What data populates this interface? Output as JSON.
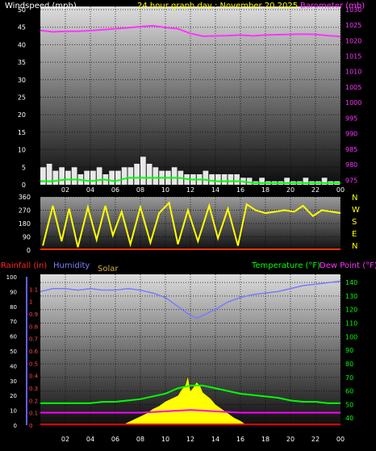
{
  "colors": {
    "background": "#000000",
    "wind": "#ffffff",
    "gust": "#00ff00",
    "barometer": "#ff33ff",
    "direction": "#ffff00",
    "rain": "#ff0000",
    "humidity": "#7a7aff",
    "solar": "#ffff00",
    "temperature": "#00ff00",
    "dewpoint": "#ff00ff",
    "title": "#ffff00",
    "windLabel": "#ffffff"
  },
  "chart_data": [
    {
      "type": "line",
      "title": "24 hour graph day : November 20 2025",
      "left_label": "Windspeed (mph)",
      "right_label": "Barometer (mb)",
      "x_ticks": [
        "02",
        "04",
        "06",
        "08",
        "10",
        "12",
        "14",
        "16",
        "18",
        "20",
        "22",
        "00"
      ],
      "x_range": [
        0,
        24
      ],
      "y_left_ticks": [
        0,
        5,
        10,
        15,
        20,
        25,
        30,
        35,
        40,
        45,
        50
      ],
      "ylim_left": [
        0,
        50
      ],
      "y_right_ticks": [
        975,
        980,
        985,
        990,
        995,
        1000,
        1005,
        1010,
        1015,
        1020,
        1025,
        1030
      ],
      "ylim_right": [
        973,
        1031
      ],
      "series": [
        {
          "role": "windspeed",
          "axis": "left",
          "style": "bars",
          "x": [
            0,
            0.5,
            1,
            1.5,
            2,
            2.5,
            3,
            3.5,
            4,
            4.5,
            5,
            5.5,
            6,
            6.5,
            7,
            7.5,
            8,
            8.5,
            9,
            9.5,
            10,
            10.5,
            11,
            11.5,
            12,
            12.5,
            13,
            13.5,
            14,
            14.5,
            15,
            15.5,
            16,
            16.5,
            17,
            17.5,
            18,
            18.5,
            19,
            19.5,
            20,
            20.5,
            21,
            21.5,
            22,
            22.5,
            23,
            23.5,
            24
          ],
          "y": [
            5,
            6,
            4,
            5,
            4,
            5,
            3,
            4,
            4,
            5,
            3,
            4,
            4,
            5,
            5,
            6,
            8,
            6,
            5,
            4,
            4,
            5,
            4,
            3,
            3,
            3,
            4,
            3,
            3,
            3,
            3,
            3,
            2,
            2,
            1,
            2,
            1,
            1,
            1,
            2,
            1,
            1,
            2,
            1,
            1,
            2,
            1,
            1,
            1
          ]
        },
        {
          "role": "gust",
          "axis": "left",
          "x": [
            0,
            1,
            2,
            3,
            4,
            5,
            6,
            7,
            8,
            9,
            10,
            11,
            12,
            13,
            14,
            15,
            16,
            17,
            18,
            19,
            20,
            21,
            22,
            23,
            24
          ],
          "y": [
            1,
            1,
            1.5,
            1.5,
            1,
            1.5,
            1,
            2,
            2,
            2,
            2,
            2,
            1.5,
            1.5,
            1,
            1,
            1,
            0.5,
            0.5,
            0.5,
            0.5,
            0.5,
            0.5,
            0.5,
            0.5
          ]
        },
        {
          "role": "barometer",
          "axis": "right",
          "x": [
            0,
            1,
            2,
            3,
            4,
            5,
            6,
            7,
            8,
            9,
            10,
            11,
            12,
            13,
            14,
            15,
            16,
            17,
            18,
            19,
            20,
            21,
            22,
            23,
            24
          ],
          "y": [
            1023.3,
            1022.8,
            1023.0,
            1023.0,
            1023.2,
            1023.5,
            1023.8,
            1024.1,
            1024.5,
            1024.8,
            1024.2,
            1023.8,
            1022.3,
            1021.4,
            1021.5,
            1021.6,
            1021.8,
            1021.5,
            1021.8,
            1021.9,
            1022.0,
            1022.1,
            1022.0,
            1021.6,
            1021.3
          ]
        }
      ]
    },
    {
      "type": "scatter",
      "right_labels": [
        "N",
        "W",
        "S",
        "E",
        "N"
      ],
      "x_range": [
        0,
        24
      ],
      "y_ticks": [
        0,
        90,
        180,
        270,
        360
      ],
      "ylim": [
        0,
        360
      ],
      "series": [
        {
          "role": "wind_direction",
          "x": [
            0.2,
            1,
            1.7,
            2.3,
            3,
            3.8,
            4.5,
            5.2,
            5.8,
            6.5,
            7.2,
            8,
            8.8,
            9.5,
            10.3,
            11,
            11.8,
            12.6,
            13.5,
            14.2,
            15,
            15.8,
            16.5,
            17.2,
            18,
            18.8,
            19.5,
            20.3,
            21,
            21.8,
            22.5,
            23.3,
            24
          ],
          "y": [
            30,
            300,
            60,
            280,
            20,
            290,
            70,
            300,
            100,
            260,
            40,
            290,
            50,
            250,
            320,
            40,
            270,
            60,
            300,
            80,
            280,
            30,
            310,
            270,
            250,
            260,
            270,
            260,
            300,
            230,
            270,
            260,
            250
          ]
        }
      ]
    },
    {
      "type": "line",
      "left_label": "Rainfall (in)",
      "humidity_label": "Humidity",
      "solar_label": "Solar",
      "right_label_temp": "Temperature (°F)",
      "right_label_dew": "Dew Point (°F)",
      "x_ticks": [
        "02",
        "04",
        "06",
        "08",
        "10",
        "12",
        "14",
        "16",
        "18",
        "20",
        "22",
        "00"
      ],
      "x_range": [
        0,
        24
      ],
      "humidity_ticks": [
        0,
        10,
        20,
        30,
        40,
        50,
        60,
        70,
        80,
        90,
        100
      ],
      "rain_ticks": [
        "0",
        "0.1",
        "0.2",
        "0.3",
        "0.4",
        "0.5",
        "0.6",
        "0.7",
        "0.8",
        "0.9",
        "1",
        "1.1"
      ],
      "ylim_rain": [
        0,
        1.2
      ],
      "temp_ticks": [
        40,
        50,
        60,
        70,
        80,
        90,
        100,
        110,
        120,
        130,
        140
      ],
      "ylim_temp": [
        33,
        146
      ],
      "series": [
        {
          "role": "humidity",
          "axis": "humidity",
          "x": [
            0,
            1,
            2,
            3,
            4,
            5,
            6,
            7,
            8,
            9,
            10,
            11,
            11.8,
            12.5,
            13,
            14,
            15,
            16,
            17,
            18,
            19,
            20,
            21,
            22,
            23,
            24
          ],
          "y": [
            90,
            92,
            92,
            91,
            92,
            91,
            91,
            92,
            91,
            89,
            86,
            80,
            75,
            72,
            74,
            78,
            83,
            86,
            88,
            89,
            90,
            92,
            94,
            95,
            96,
            97
          ]
        },
        {
          "role": "temperature",
          "axis": "temp",
          "x": [
            0,
            1,
            2,
            3,
            4,
            5,
            6,
            7,
            8,
            9,
            10,
            11,
            12,
            13,
            14,
            15,
            16,
            17,
            18,
            19,
            20,
            21,
            22,
            23,
            24
          ],
          "y": [
            51,
            51,
            51,
            51,
            51,
            52,
            52,
            53,
            54,
            56,
            58,
            62,
            64,
            64,
            62,
            60,
            58,
            57,
            56,
            55,
            53,
            52,
            52,
            51,
            51
          ]
        },
        {
          "role": "dew_point",
          "axis": "temp",
          "x": [
            0,
            2,
            4,
            6,
            8,
            10,
            12,
            14,
            16,
            18,
            20,
            22,
            24
          ],
          "y": [
            44,
            44,
            44,
            44,
            44,
            45,
            46,
            45,
            44,
            44,
            44,
            44,
            44
          ]
        },
        {
          "role": "solar",
          "axis": "humidity",
          "x": [
            6.5,
            7,
            7.5,
            8,
            8.5,
            9,
            9.5,
            10,
            10.5,
            11,
            11.3,
            11.6,
            11.8,
            12,
            12.2,
            12.5,
            12.8,
            13,
            13.3,
            13.6,
            14,
            14.5,
            15,
            15.5,
            16,
            16.5
          ],
          "y": [
            0,
            2,
            4,
            6,
            8,
            11,
            13,
            16,
            18,
            20,
            24,
            27,
            33,
            23,
            25,
            29,
            26,
            22,
            20,
            18,
            14,
            11,
            8,
            5,
            3,
            0
          ]
        },
        {
          "role": "rainfall",
          "axis": "rain",
          "x": [
            0,
            24
          ],
          "y": [
            0,
            0
          ]
        }
      ]
    }
  ]
}
